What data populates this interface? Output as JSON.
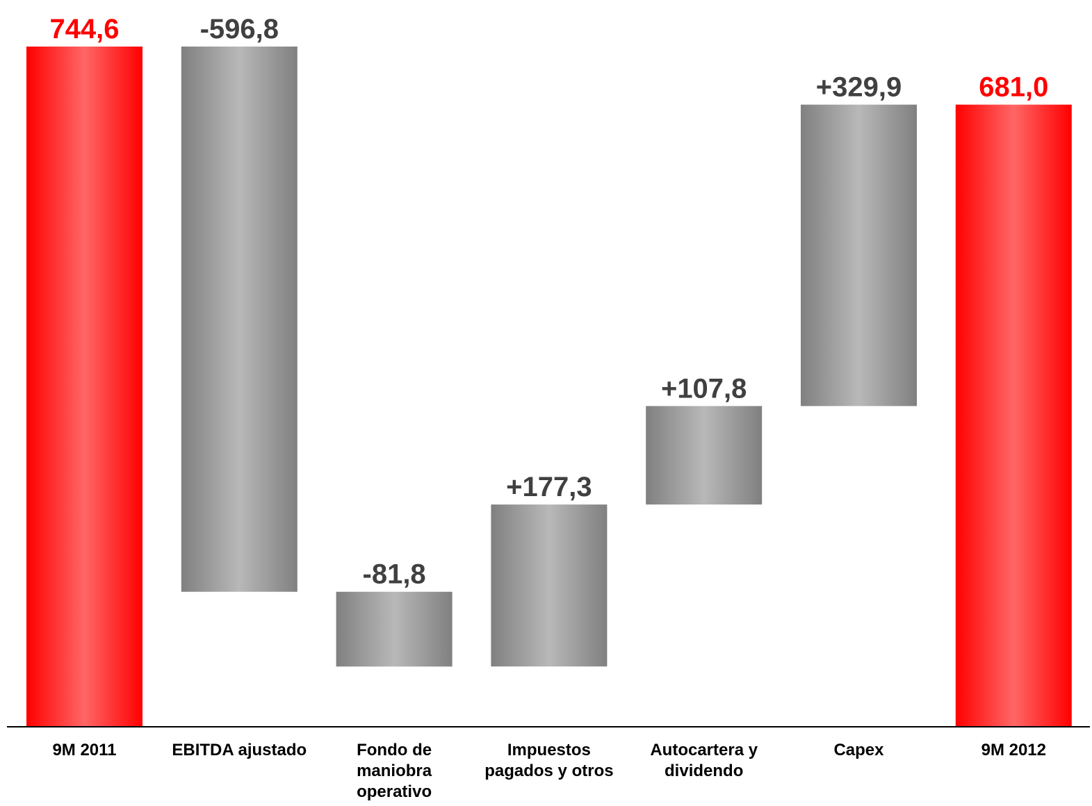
{
  "chart_data": {
    "type": "bar",
    "variant": "waterfall",
    "title": "",
    "xlabel": "",
    "ylabel": "",
    "grid": false,
    "legend": "none",
    "categories": [
      "9M 2011",
      "EBITDA ajustado",
      "Fondo de maniobra operativo",
      "Impuestos pagados y otros",
      "Autocartera y dividendo",
      "Capex",
      "9M 2012"
    ],
    "category_lines": [
      [
        "9M 2011"
      ],
      [
        "EBITDA ajustado"
      ],
      [
        "Fondo de",
        "maniobra",
        "operativo"
      ],
      [
        "Impuestos",
        "pagados y otros"
      ],
      [
        "Autocartera y",
        "dividendo"
      ],
      [
        "Capex"
      ],
      [
        "9M 2012"
      ]
    ],
    "bars": [
      {
        "kind": "total",
        "start": 0,
        "end": 744.6
      },
      {
        "kind": "change",
        "start": 744.6,
        "end": 147.8
      },
      {
        "kind": "change",
        "start": 147.8,
        "end": 66.0
      },
      {
        "kind": "change",
        "start": 66.0,
        "end": 243.3
      },
      {
        "kind": "change",
        "start": 243.3,
        "end": 351.1
      },
      {
        "kind": "change",
        "start": 351.1,
        "end": 681.0
      },
      {
        "kind": "total",
        "start": 0,
        "end": 681.0
      }
    ],
    "values": [
      744.6,
      -596.8,
      -81.8,
      177.3,
      107.8,
      329.9,
      681.0
    ],
    "data_labels": [
      "744,6",
      "-596,8",
      "-81,8",
      "+177,3",
      "+107,8",
      "+329,9",
      "681,0"
    ],
    "ylim": [
      0,
      744.6
    ],
    "colors": {
      "total": "#ff0000",
      "total_light": "#ff6666",
      "change_dark": "#808080",
      "change_light": "#b8b8b8",
      "total_label": "#ff0000",
      "change_label": "#404040",
      "axis": "#000000",
      "category_label": "#000000"
    }
  }
}
